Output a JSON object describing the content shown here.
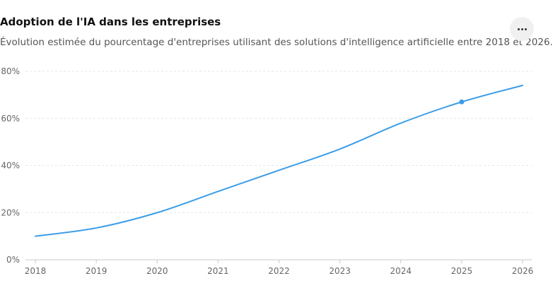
{
  "header": {
    "title": "Adoption de l'IA dans les entreprises",
    "subtitle": "Évolution estimée du pourcentage d'entreprises utilisant des solutions d'intelligence artificielle entre 2018 et 2026.",
    "more_icon": "more-horizontal-icon"
  },
  "chart_data": {
    "type": "line",
    "x": [
      "2018",
      "2019",
      "2020",
      "2021",
      "2022",
      "2023",
      "2024",
      "2025",
      "2026"
    ],
    "series": [
      {
        "values": [
          10,
          13.5,
          20,
          29,
          38,
          47,
          58,
          67,
          74
        ],
        "color": "#3b9de8"
      }
    ],
    "highlight_index": 7,
    "ylim": [
      0,
      80
    ],
    "yticks": [
      0,
      20,
      40,
      60,
      80
    ],
    "ytick_labels": [
      "0%",
      "20%",
      "40%",
      "60%",
      "80%"
    ],
    "grid": true
  }
}
